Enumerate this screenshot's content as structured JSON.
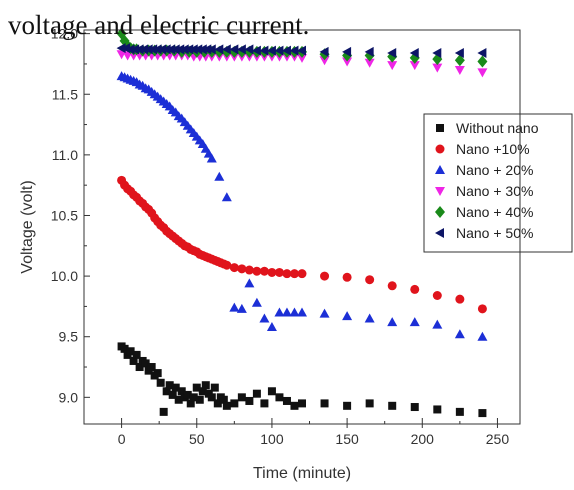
{
  "caption": "voltage and electric current.",
  "chart_data": {
    "type": "scatter",
    "xlabel": "Time (minute)",
    "ylabel": "Voltage (volt)",
    "xlim": [
      -25,
      265
    ],
    "ylim": [
      8.78,
      12.03
    ],
    "xticks": [
      0,
      50,
      100,
      150,
      200,
      250
    ],
    "yticks": [
      9.0,
      9.5,
      10.0,
      10.5,
      11.0,
      11.5,
      12.0
    ],
    "ytick_labels": [
      "9.0",
      "9.5",
      "10.0",
      "10.5",
      "11.0",
      "11.5",
      "12.0"
    ],
    "grid": false,
    "legend_position": "right",
    "series": [
      {
        "name": "Without nano",
        "marker": "square",
        "color": "#111111",
        "x": [
          0,
          2,
          4,
          6,
          8,
          10,
          12,
          14,
          16,
          18,
          20,
          22,
          24,
          26,
          28,
          30,
          32,
          34,
          36,
          38,
          40,
          42,
          44,
          46,
          48,
          50,
          52,
          54,
          56,
          58,
          60,
          62,
          64,
          66,
          68,
          70,
          75,
          80,
          85,
          90,
          95,
          100,
          105,
          110,
          115,
          120,
          135,
          150,
          165,
          180,
          195,
          210,
          225,
          240
        ],
        "y": [
          9.42,
          9.4,
          9.35,
          9.38,
          9.3,
          9.35,
          9.25,
          9.3,
          9.28,
          9.22,
          9.25,
          9.18,
          9.2,
          9.12,
          8.88,
          9.05,
          9.1,
          9.02,
          9.08,
          8.98,
          9.05,
          9.0,
          9.02,
          8.95,
          9.0,
          9.08,
          8.98,
          9.05,
          9.1,
          9.03,
          9.0,
          9.08,
          8.95,
          9.0,
          8.98,
          8.93,
          8.95,
          9.0,
          8.97,
          9.03,
          8.95,
          9.05,
          9.0,
          8.97,
          8.93,
          8.95,
          8.95,
          8.93,
          8.95,
          8.93,
          8.92,
          8.9,
          8.88,
          8.87
        ]
      },
      {
        "name": "Nano +10%",
        "marker": "circle",
        "color": "#e0141c",
        "x": [
          0,
          2,
          4,
          6,
          8,
          10,
          12,
          14,
          16,
          18,
          20,
          22,
          24,
          26,
          28,
          30,
          32,
          34,
          36,
          38,
          40,
          42,
          44,
          46,
          48,
          50,
          52,
          54,
          56,
          58,
          60,
          62,
          64,
          66,
          68,
          70,
          75,
          80,
          85,
          90,
          95,
          100,
          105,
          110,
          115,
          120,
          135,
          150,
          165,
          180,
          195,
          210,
          225,
          240
        ],
        "y": [
          10.79,
          10.75,
          10.72,
          10.7,
          10.67,
          10.65,
          10.62,
          10.6,
          10.57,
          10.55,
          10.52,
          10.48,
          10.45,
          10.42,
          10.4,
          10.37,
          10.35,
          10.33,
          10.31,
          10.29,
          10.27,
          10.25,
          10.24,
          10.22,
          10.21,
          10.2,
          10.18,
          10.17,
          10.16,
          10.15,
          10.14,
          10.13,
          10.12,
          10.11,
          10.1,
          10.09,
          10.07,
          10.06,
          10.05,
          10.04,
          10.04,
          10.03,
          10.03,
          10.02,
          10.02,
          10.02,
          10.0,
          9.99,
          9.97,
          9.92,
          9.89,
          9.84,
          9.81,
          9.73
        ]
      },
      {
        "name": "Nano + 20%",
        "marker": "triangle-up",
        "color": "#1c2fd6",
        "x": [
          0,
          2,
          4,
          6,
          8,
          10,
          12,
          14,
          16,
          18,
          20,
          22,
          24,
          26,
          28,
          30,
          32,
          34,
          36,
          38,
          40,
          42,
          44,
          46,
          48,
          50,
          52,
          54,
          56,
          58,
          60,
          65,
          70,
          75,
          80,
          85,
          90,
          95,
          100,
          105,
          110,
          115,
          120,
          135,
          150,
          165,
          180,
          195,
          210,
          225,
          240
        ],
        "y": [
          11.65,
          11.64,
          11.63,
          11.62,
          11.61,
          11.6,
          11.58,
          11.57,
          11.55,
          11.54,
          11.52,
          11.5,
          11.48,
          11.46,
          11.44,
          11.42,
          11.4,
          11.37,
          11.35,
          11.32,
          11.3,
          11.27,
          11.24,
          11.21,
          11.18,
          11.15,
          11.12,
          11.09,
          11.05,
          11.01,
          10.97,
          10.82,
          10.65,
          9.74,
          9.73,
          9.94,
          9.78,
          9.65,
          9.58,
          9.7,
          9.7,
          9.7,
          9.7,
          9.69,
          9.67,
          9.65,
          9.62,
          9.62,
          9.6,
          9.52,
          9.5
        ]
      },
      {
        "name": "Nano + 30%",
        "marker": "triangle-down",
        "color": "#ef25e6",
        "x": [
          0,
          4,
          8,
          12,
          16,
          20,
          24,
          28,
          32,
          36,
          40,
          44,
          48,
          52,
          56,
          60,
          65,
          70,
          75,
          80,
          85,
          90,
          95,
          100,
          105,
          110,
          115,
          120,
          135,
          150,
          165,
          180,
          195,
          210,
          225,
          240
        ],
        "y": [
          11.83,
          11.82,
          11.82,
          11.82,
          11.82,
          11.82,
          11.82,
          11.82,
          11.82,
          11.82,
          11.82,
          11.82,
          11.81,
          11.81,
          11.81,
          11.81,
          11.81,
          11.81,
          11.81,
          11.81,
          11.81,
          11.81,
          11.81,
          11.81,
          11.81,
          11.81,
          11.81,
          11.8,
          11.78,
          11.77,
          11.76,
          11.74,
          11.74,
          11.72,
          11.7,
          11.68
        ]
      },
      {
        "name": "Nano + 40%",
        "marker": "diamond",
        "color": "#1a8a1a",
        "x": [
          0,
          2,
          4,
          6,
          8,
          10,
          14,
          18,
          22,
          26,
          30,
          35,
          40,
          45,
          50,
          55,
          60,
          65,
          70,
          75,
          80,
          85,
          90,
          95,
          100,
          105,
          110,
          115,
          120,
          135,
          150,
          165,
          180,
          195,
          210,
          225,
          240
        ],
        "y": [
          12.0,
          11.94,
          11.9,
          11.88,
          11.87,
          11.87,
          11.86,
          11.86,
          11.86,
          11.86,
          11.86,
          11.86,
          11.85,
          11.85,
          11.85,
          11.85,
          11.85,
          11.85,
          11.85,
          11.85,
          11.85,
          11.85,
          11.85,
          11.85,
          11.85,
          11.85,
          11.85,
          11.85,
          11.85,
          11.83,
          11.82,
          11.82,
          11.81,
          11.8,
          11.79,
          11.78,
          11.77
        ]
      },
      {
        "name": "Nano + 50%",
        "marker": "triangle-left",
        "color": "#0d1566",
        "x": [
          0,
          3,
          6,
          9,
          12,
          15,
          18,
          21,
          24,
          27,
          30,
          33,
          36,
          39,
          42,
          45,
          48,
          51,
          54,
          57,
          60,
          65,
          70,
          75,
          80,
          85,
          90,
          95,
          100,
          105,
          110,
          115,
          120,
          135,
          150,
          165,
          180,
          195,
          210,
          225,
          240
        ],
        "y": [
          11.88,
          11.88,
          11.87,
          11.87,
          11.87,
          11.87,
          11.87,
          11.87,
          11.87,
          11.87,
          11.87,
          11.87,
          11.87,
          11.87,
          11.87,
          11.87,
          11.87,
          11.87,
          11.87,
          11.87,
          11.87,
          11.87,
          11.87,
          11.87,
          11.87,
          11.87,
          11.86,
          11.86,
          11.86,
          11.86,
          11.86,
          11.86,
          11.86,
          11.85,
          11.85,
          11.85,
          11.84,
          11.84,
          11.84,
          11.84,
          11.84
        ]
      }
    ]
  }
}
